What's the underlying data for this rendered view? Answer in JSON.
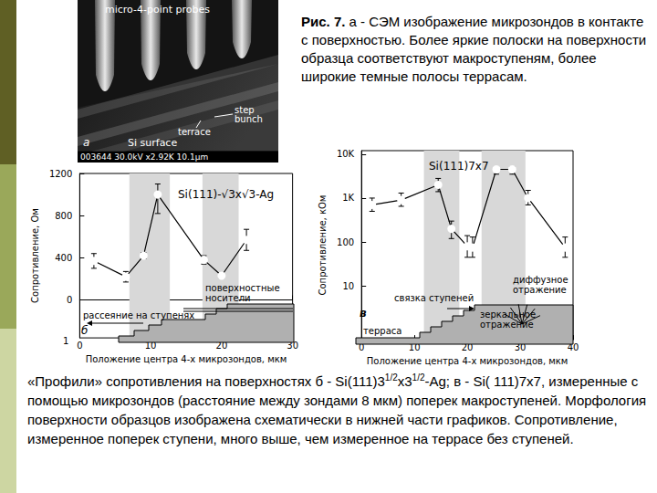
{
  "photo": {
    "title": "micro-4-point probes",
    "labels": [
      "step bunch",
      "terrace",
      "Si surface"
    ],
    "panel": "а",
    "footer": "003644 30.0kV x2.92K 10.1µm"
  },
  "figure_caption": {
    "label": "Рис. 7.",
    "text": " а - СЭМ изображение микрозондов в контакте с поверхностью. Более яркие полоски на поверхности образца соответствуют макроступеням, более широкие темные полосы террасам."
  },
  "chart_data": [
    {
      "type": "line",
      "title": "Si(111)-√3x√3-Ag",
      "x_label": "Положение центра 4-х микрозондов, мкм",
      "y_label": "Сопротивление, Ом",
      "x": [
        2,
        6.5,
        9,
        11,
        17.5,
        20,
        23.5
      ],
      "values": [
        370,
        220,
        420,
        1000,
        380,
        230,
        570
      ],
      "error_low": [
        300,
        170,
        390,
        820,
        340,
        210,
        470
      ],
      "error_high": [
        440,
        270,
        450,
        1100,
        420,
        250,
        670
      ],
      "bands": [
        [
          7,
          12.7
        ],
        [
          17.3,
          22.4
        ]
      ],
      "xlim": [
        0,
        30
      ],
      "xticks": [
        0,
        10,
        20,
        30
      ],
      "ylim": [
        -360,
        1200
      ],
      "yticks": [
        0,
        400,
        800,
        1200
      ],
      "color": "#000000",
      "marker": "circle",
      "grid": false,
      "annotations": [
        "б",
        "рассеяние на ступенях",
        "поверхностные носители",
        "1"
      ]
    },
    {
      "type": "line",
      "title": "Si(111)7x7",
      "x_label": "Положение центра 4-х микрозондов, мкм",
      "y_label": "Сопротивление, кОм",
      "x": [
        2,
        7.5,
        14.5,
        17,
        20,
        21,
        25.5,
        28.5,
        31.5,
        38.5
      ],
      "values": [
        700,
        900,
        2000,
        200,
        80,
        75,
        4500,
        4500,
        1000,
        75
      ],
      "error_low": [
        500,
        650,
        1400,
        120,
        45,
        45,
        3500,
        3500,
        700,
        45
      ],
      "error_high": [
        1000,
        1300,
        2800,
        300,
        140,
        130,
        5200,
        5200,
        1500,
        130
      ],
      "bands": [
        [
          11.8,
          18.5
        ],
        [
          22.7,
          31
        ]
      ],
      "xlim": [
        0,
        40
      ],
      "xticks": [
        0,
        10,
        20,
        30,
        40
      ],
      "ylim": [
        0.6,
        12000
      ],
      "yticks": [
        10,
        100,
        {
          "value": 1000,
          "label": "1K"
        },
        {
          "value": 10000,
          "label": "10K"
        }
      ],
      "log": "y",
      "color": "#000000",
      "marker": "circle",
      "grid": false,
      "annotations": [
        "в",
        "связка ступеней",
        "зеркальное отражение",
        "диффузное отражение",
        "терраса"
      ]
    }
  ],
  "bottom_caption": [
    {
      "text": "«Профили» сопротивления на поверхностях б - Si(111)3"
    },
    {
      "sup": "1/2"
    },
    {
      "text": "x3"
    },
    {
      "sup": "1/2"
    },
    {
      "text": "-Ag; в - Si( 111)7x7, измеренные с помощью микрозондов (расстояние между зондами 8 мкм) поперек макроступеней. Морфология поверхности образцов изображена схематически в нижней части графиков. Сопротивление, измеренное поперек ступени, много выше, чем измеренное на террасе без ступеней."
    }
  ]
}
